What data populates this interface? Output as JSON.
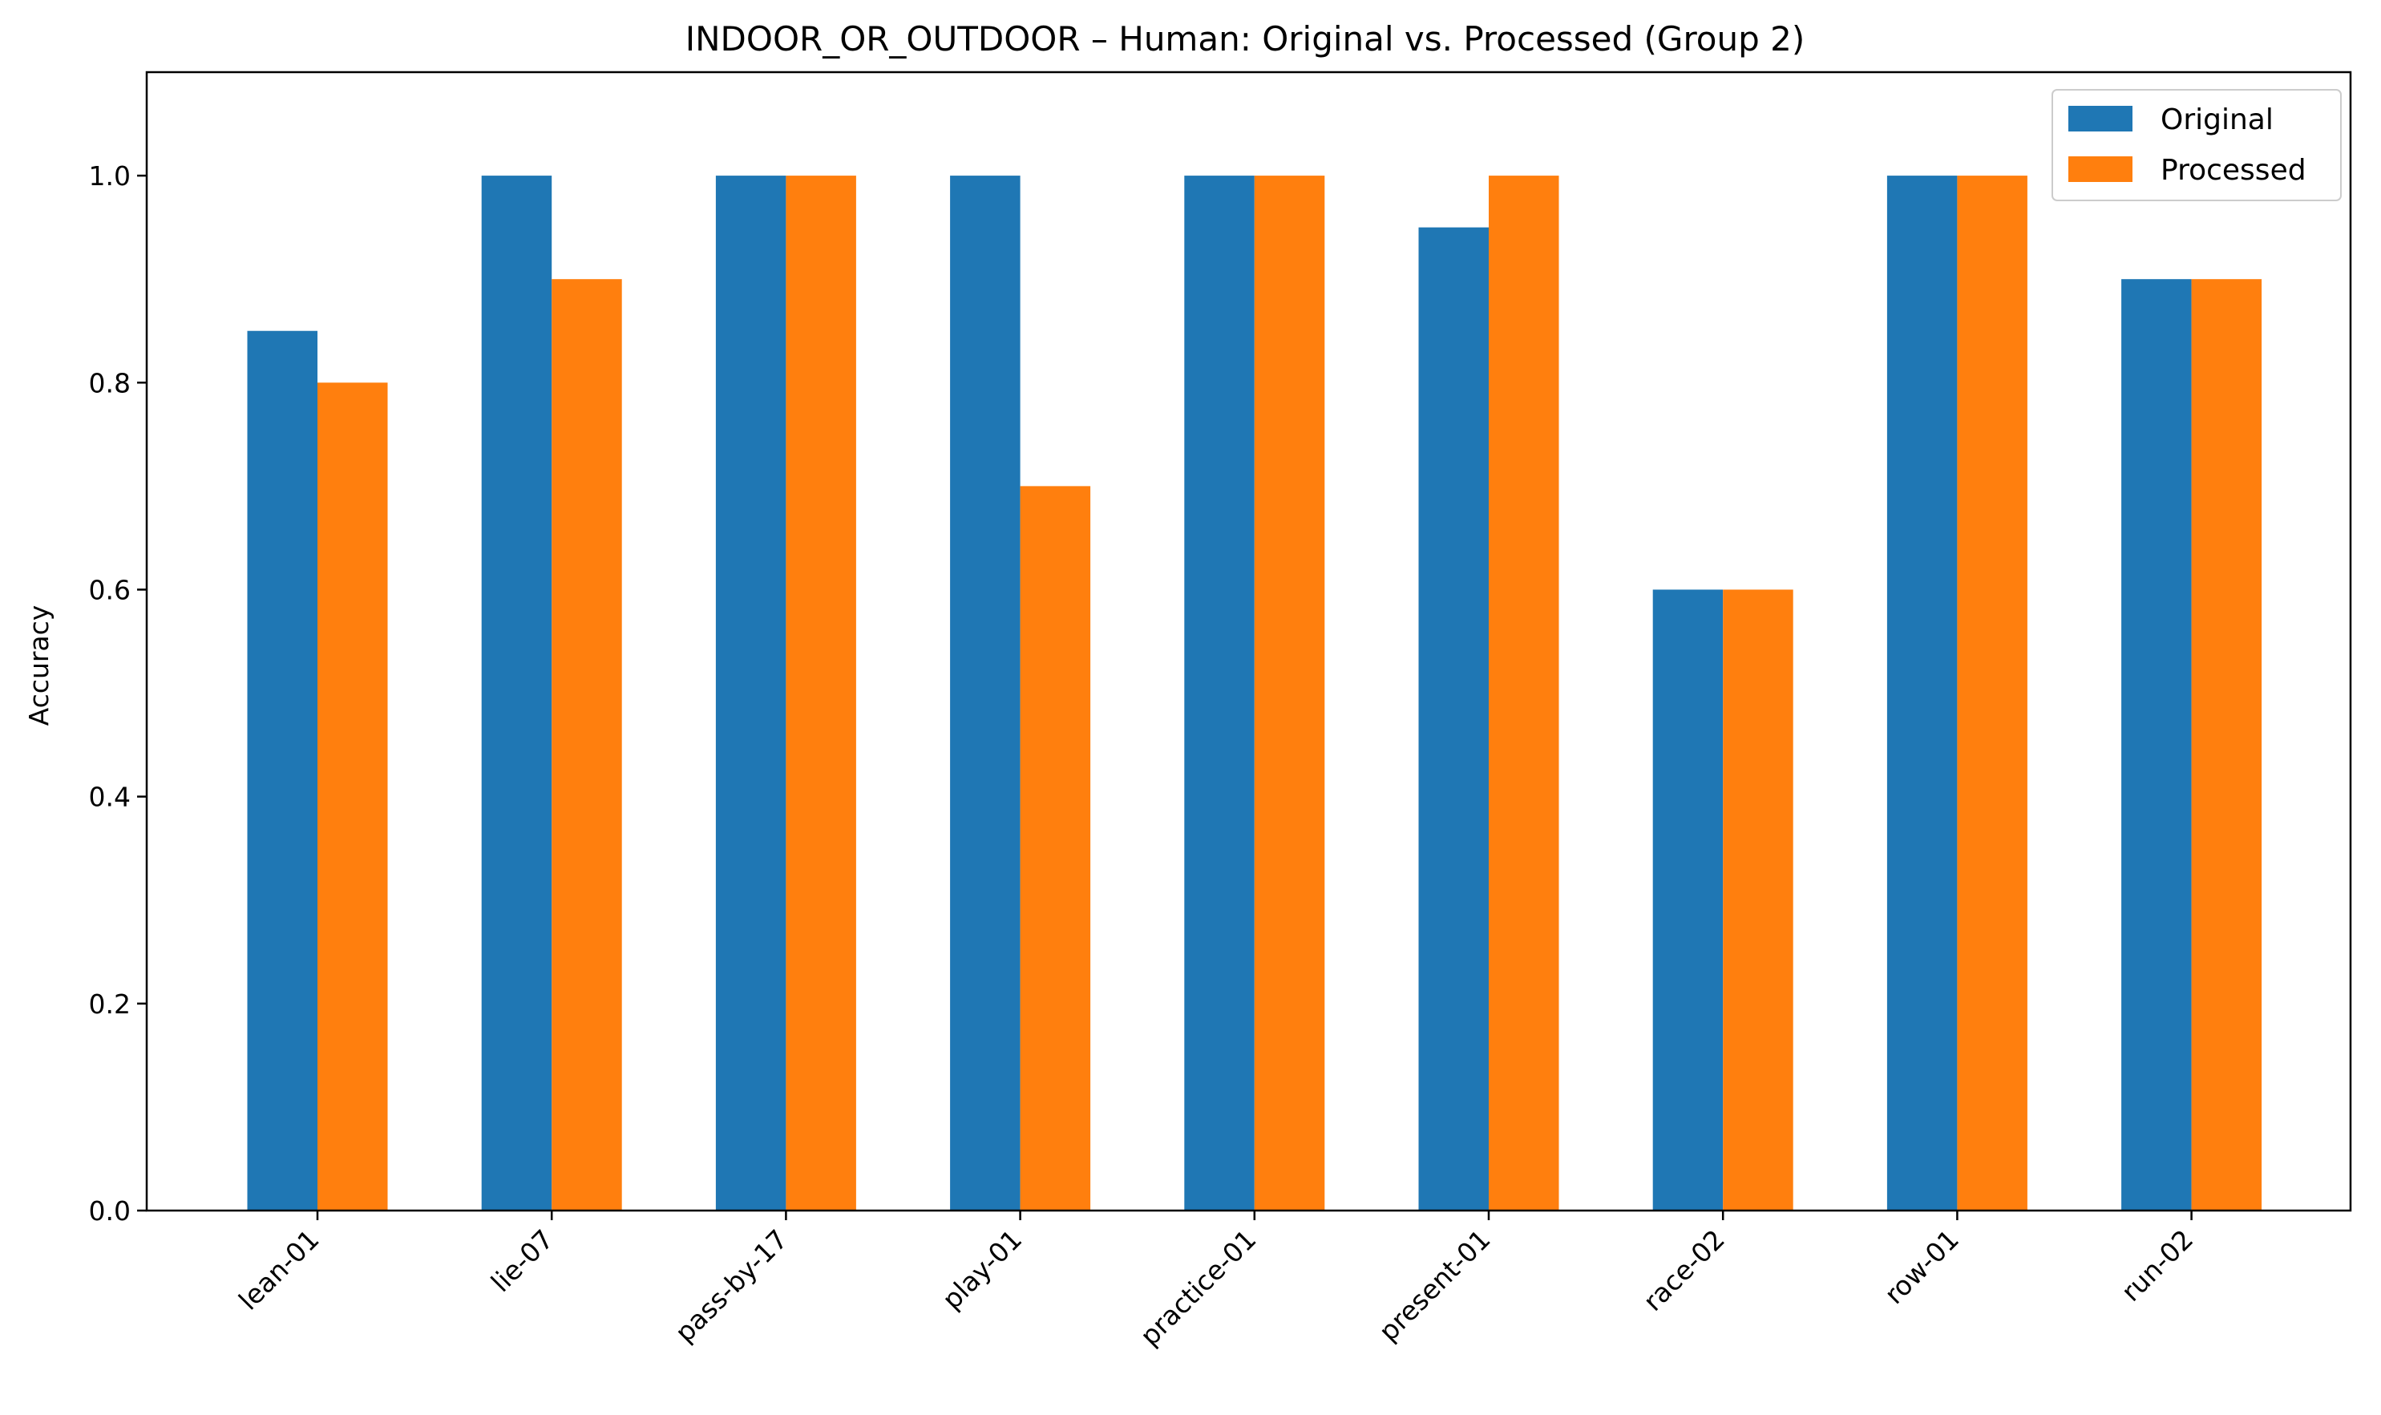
{
  "chart_data": {
    "type": "bar",
    "title": "INDOOR_OR_OUTDOOR – Human: Original vs. Processed (Group 2)",
    "xlabel": "",
    "ylabel": "Accuracy",
    "ylim": [
      0,
      1.1
    ],
    "yticks": [
      "0.0",
      "0.2",
      "0.4",
      "0.6",
      "0.8",
      "1.0"
    ],
    "categories": [
      "lean-01",
      "lie-07",
      "pass-by-17",
      "play-01",
      "practice-01",
      "present-01",
      "race-02",
      "row-01",
      "run-02"
    ],
    "series": [
      {
        "name": "Original",
        "color": "#1f77b4",
        "values": [
          0.85,
          1.0,
          1.0,
          1.0,
          1.0,
          0.95,
          0.6,
          1.0,
          0.9
        ]
      },
      {
        "name": "Processed",
        "color": "#ff7f0e",
        "values": [
          0.8,
          0.9,
          1.0,
          0.7,
          1.0,
          1.0,
          0.6,
          1.0,
          0.9
        ]
      }
    ],
    "legend_position": "top-right",
    "grid": false
  }
}
